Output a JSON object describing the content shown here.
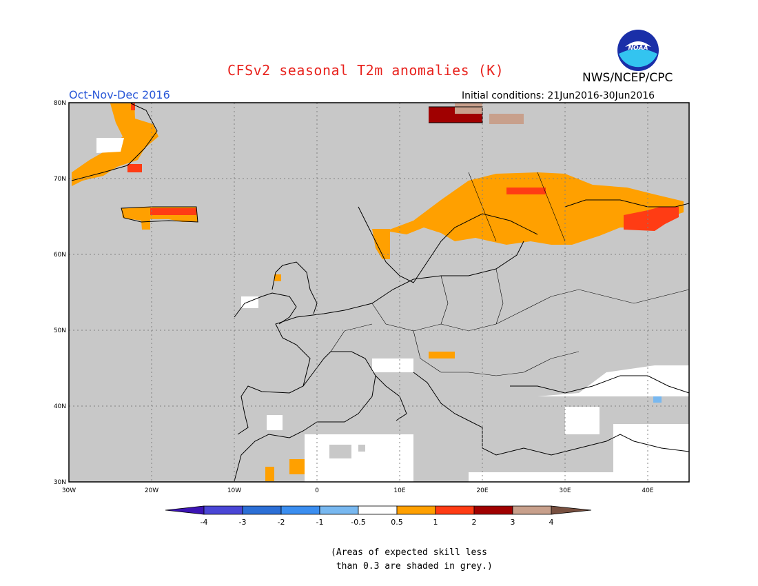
{
  "header": {
    "title": "CFSv2 seasonal T2m anomalies (K)",
    "agency": "NWS/NCEP/CPC",
    "season": "Oct-Nov-Dec 2016",
    "initial_conditions": "Initial conditions: 21Jun2016-30Jun2016"
  },
  "logo": {
    "text": "NOAA"
  },
  "map": {
    "lat_ticks": [
      "30N",
      "40N",
      "50N",
      "60N",
      "70N",
      "80N"
    ],
    "lon_ticks": [
      "30W",
      "20W",
      "10W",
      "0",
      "10E",
      "20E",
      "30E",
      "40E"
    ],
    "background_color": "#c8c8c8",
    "grid": true
  },
  "colorbar": {
    "labels": [
      "-4",
      "-3",
      "-2",
      "-1",
      "-0.5",
      "0.5",
      "1",
      "2",
      "3",
      "4"
    ],
    "colors": [
      "#3c14b4",
      "#4a46d6",
      "#2c6fd6",
      "#3b8ef0",
      "#78b8f0",
      "#ffffff",
      "#ffa000",
      "#ff3c14",
      "#a00000",
      "#c8a08c",
      "#785040"
    ]
  },
  "footnote": "(Areas of expected skill less\n than 0.3 are shaded in grey.)"
}
